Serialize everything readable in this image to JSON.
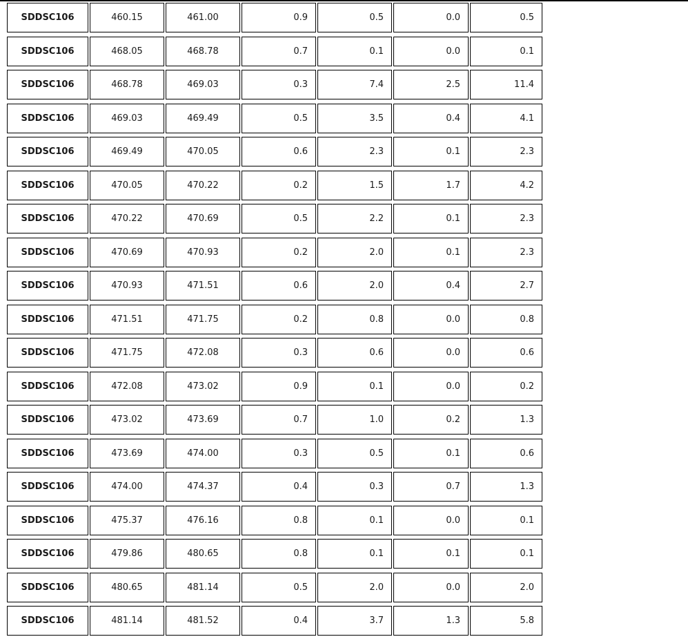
{
  "colors": {
    "border": "#000000",
    "text": "#1a1a1a",
    "background": "#ffffff",
    "top_rule": "#000000"
  },
  "table": {
    "rows": [
      [
        "SDDSC106",
        "460.15",
        "461.00",
        "0.9",
        "0.5",
        "0.0",
        "0.5"
      ],
      [
        "SDDSC106",
        "468.05",
        "468.78",
        "0.7",
        "0.1",
        "0.0",
        "0.1"
      ],
      [
        "SDDSC106",
        "468.78",
        "469.03",
        "0.3",
        "7.4",
        "2.5",
        "11.4"
      ],
      [
        "SDDSC106",
        "469.03",
        "469.49",
        "0.5",
        "3.5",
        "0.4",
        "4.1"
      ],
      [
        "SDDSC106",
        "469.49",
        "470.05",
        "0.6",
        "2.3",
        "0.1",
        "2.3"
      ],
      [
        "SDDSC106",
        "470.05",
        "470.22",
        "0.2",
        "1.5",
        "1.7",
        "4.2"
      ],
      [
        "SDDSC106",
        "470.22",
        "470.69",
        "0.5",
        "2.2",
        "0.1",
        "2.3"
      ],
      [
        "SDDSC106",
        "470.69",
        "470.93",
        "0.2",
        "2.0",
        "0.1",
        "2.3"
      ],
      [
        "SDDSC106",
        "470.93",
        "471.51",
        "0.6",
        "2.0",
        "0.4",
        "2.7"
      ],
      [
        "SDDSC106",
        "471.51",
        "471.75",
        "0.2",
        "0.8",
        "0.0",
        "0.8"
      ],
      [
        "SDDSC106",
        "471.75",
        "472.08",
        "0.3",
        "0.6",
        "0.0",
        "0.6"
      ],
      [
        "SDDSC106",
        "472.08",
        "473.02",
        "0.9",
        "0.1",
        "0.0",
        "0.2"
      ],
      [
        "SDDSC106",
        "473.02",
        "473.69",
        "0.7",
        "1.0",
        "0.2",
        "1.3"
      ],
      [
        "SDDSC106",
        "473.69",
        "474.00",
        "0.3",
        "0.5",
        "0.1",
        "0.6"
      ],
      [
        "SDDSC106",
        "474.00",
        "474.37",
        "0.4",
        "0.3",
        "0.7",
        "1.3"
      ],
      [
        "SDDSC106",
        "475.37",
        "476.16",
        "0.8",
        "0.1",
        "0.0",
        "0.1"
      ],
      [
        "SDDSC106",
        "479.86",
        "480.65",
        "0.8",
        "0.1",
        "0.1",
        "0.1"
      ],
      [
        "SDDSC106",
        "480.65",
        "481.14",
        "0.5",
        "2.0",
        "0.0",
        "2.0"
      ],
      [
        "SDDSC106",
        "481.14",
        "481.52",
        "0.4",
        "3.7",
        "1.3",
        "5.8"
      ]
    ]
  }
}
